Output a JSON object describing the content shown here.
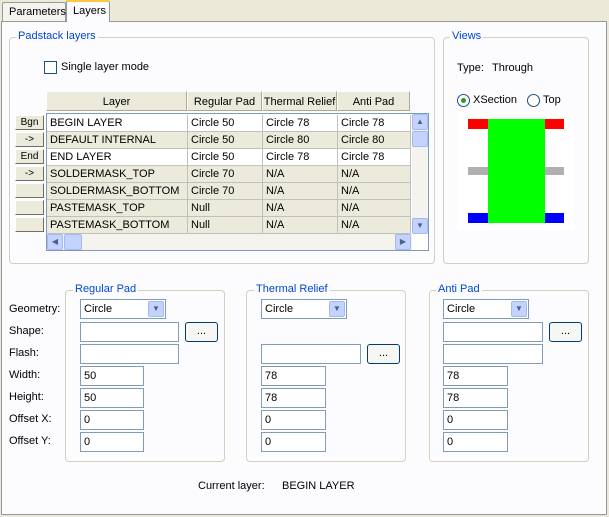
{
  "tabs": [
    {
      "label": "Parameters"
    },
    {
      "label": "Layers"
    }
  ],
  "padstack": {
    "title": "Padstack layers",
    "single_layer_mode": "Single layer mode",
    "columns": [
      "Layer",
      "Regular Pad",
      "Thermal Relief",
      "Anti Pad"
    ],
    "row_buttons": [
      "Bgn",
      "->",
      "End",
      "->",
      "",
      "",
      ""
    ],
    "rows": [
      {
        "layer": "BEGIN LAYER",
        "regular": "Circle 50",
        "thermal": "Circle 78",
        "anti": "Circle 78"
      },
      {
        "layer": "DEFAULT INTERNAL",
        "regular": "Circle 50",
        "thermal": "Circle 80",
        "anti": "Circle 80"
      },
      {
        "layer": "END LAYER",
        "regular": "Circle 50",
        "thermal": "Circle 78",
        "anti": "Circle 78"
      },
      {
        "layer": "SOLDERMASK_TOP",
        "regular": "Circle 70",
        "thermal": "N/A",
        "anti": "N/A"
      },
      {
        "layer": "SOLDERMASK_BOTTOM",
        "regular": "Circle 70",
        "thermal": "N/A",
        "anti": "N/A"
      },
      {
        "layer": "PASTEMASK_TOP",
        "regular": "Null",
        "thermal": "N/A",
        "anti": "N/A"
      },
      {
        "layer": "PASTEMASK_BOTTOM",
        "regular": "Null",
        "thermal": "N/A",
        "anti": "N/A"
      }
    ]
  },
  "views": {
    "title": "Views",
    "type_label": "Type:",
    "type_value": "Through",
    "radio_xsection": "XSection",
    "radio_top": "Top",
    "selected": "XSection",
    "colors": {
      "top_pad": "#ff0000",
      "body": "#00ff00",
      "inner": "#b0b0b0",
      "bottom_pad": "#0000ff"
    }
  },
  "field_labels": {
    "geometry": "Geometry:",
    "shape": "Shape:",
    "flash": "Flash:",
    "width": "Width:",
    "height": "Height:",
    "offset_x": "Offset X:",
    "offset_y": "Offset Y:"
  },
  "regular_pad": {
    "title": "Regular Pad",
    "geometry": "Circle",
    "shape": "",
    "width": "50",
    "height": "50",
    "offset_x": "0",
    "offset_y": "0",
    "browse": "..."
  },
  "thermal_relief": {
    "title": "Thermal Relief",
    "geometry": "Circle",
    "flash": "",
    "width": "78",
    "height": "78",
    "offset_x": "0",
    "offset_y": "0",
    "browse": "..."
  },
  "anti_pad": {
    "title": "Anti Pad",
    "geometry": "Circle",
    "shape": "",
    "width": "78",
    "height": "78",
    "offset_x": "0",
    "offset_y": "0",
    "browse": "..."
  },
  "current_layer": {
    "label": "Current layer:",
    "value": "BEGIN LAYER"
  }
}
